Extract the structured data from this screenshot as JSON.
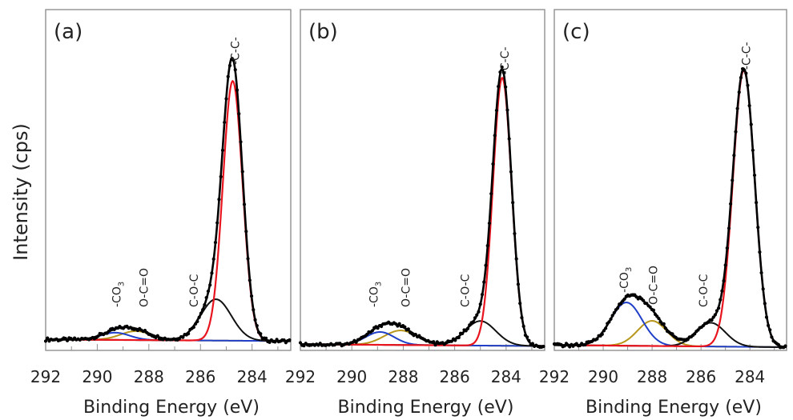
{
  "figure": {
    "ylabel": "Intensity (cps)",
    "xlabel": "Binding Energy (eV)"
  },
  "colors": {
    "data": "#000000",
    "envelope": "#000000",
    "cc": "#e8141e",
    "coc": "#111111",
    "oco": "#b8961a",
    "co3": "#1f3fc8",
    "background": "#b8961a",
    "frame": "#909090"
  },
  "chart_data": [
    {
      "type": "line",
      "panel_label": "(a)",
      "xlabel": "Binding Energy (eV)",
      "ylabel": "Intensity (cps)",
      "xlim": [
        292,
        282.5
      ],
      "x_reversed": true,
      "xticks": [
        292,
        290,
        288,
        286,
        284
      ],
      "xticklabels": [
        "292",
        "290",
        "288",
        "286",
        "284"
      ],
      "baseline": 0.022,
      "background_slope": 0.0006,
      "peaks": [
        {
          "name": "-C-C-",
          "component": "cc",
          "center": 284.75,
          "height": 0.93,
          "fwhm": 0.9
        },
        {
          "name": "C-O-C",
          "component": "coc",
          "center": 285.4,
          "height": 0.148,
          "fwhm": 1.4
        },
        {
          "name": "O-C=O",
          "component": "oco",
          "center": 288.5,
          "height": 0.032,
          "fwhm": 1.4
        },
        {
          "name": "-CO3",
          "component": "co3",
          "center": 289.3,
          "height": 0.026,
          "fwhm": 1.3
        }
      ],
      "annotations": [
        {
          "text": "-C-C-",
          "x": 284.65
        },
        {
          "text": "C-O-C",
          "x": 286.25
        },
        {
          "text": "O-C=O",
          "x": 288.2
        },
        {
          "text": "-CO",
          "sub": "3",
          "x": 289.25
        }
      ]
    },
    {
      "type": "line",
      "panel_label": "(b)",
      "xlabel": "Binding Energy (eV)",
      "ylabel": "",
      "xlim": [
        292,
        282.5
      ],
      "x_reversed": true,
      "xticks": [
        292,
        290,
        288,
        286,
        284
      ],
      "xticklabels": [
        "292",
        "290",
        "288",
        "286",
        "284"
      ],
      "baseline": 0.004,
      "background_slope": 0.0007,
      "peaks": [
        {
          "name": "-C-C-",
          "component": "cc",
          "center": 284.15,
          "height": 0.96,
          "fwhm": 0.85
        },
        {
          "name": "C-O-C",
          "component": "coc",
          "center": 285.0,
          "height": 0.088,
          "fwhm": 1.4
        },
        {
          "name": "O-C=O",
          "component": "oco",
          "center": 288.1,
          "height": 0.052,
          "fwhm": 1.5
        },
        {
          "name": "-CO3",
          "component": "co3",
          "center": 288.9,
          "height": 0.046,
          "fwhm": 1.3
        }
      ],
      "annotations": [
        {
          "text": "-C-C-",
          "x": 284.05
        },
        {
          "text": "C-O-C",
          "x": 285.6
        },
        {
          "text": "O-C=O",
          "x": 287.9
        },
        {
          "text": "-CO",
          "sub": "3",
          "x": 289.15
        }
      ]
    },
    {
      "type": "line",
      "panel_label": "(c)",
      "xlabel": "Binding Energy (eV)",
      "ylabel": "",
      "xlim": [
        292,
        282.5
      ],
      "x_reversed": true,
      "xticks": [
        292,
        290,
        288,
        286,
        284
      ],
      "xticklabels": [
        "292",
        "290",
        "288",
        "286",
        "284"
      ],
      "baseline": 0.0,
      "background_slope": 0.0008,
      "peaks": [
        {
          "name": "-C-C-",
          "component": "cc",
          "center": 284.25,
          "height": 0.99,
          "fwhm": 1.05
        },
        {
          "name": "C-O-C",
          "component": "coc",
          "center": 285.6,
          "height": 0.085,
          "fwhm": 1.4
        },
        {
          "name": "O-C=O",
          "component": "oco",
          "center": 288.0,
          "height": 0.09,
          "fwhm": 1.4
        },
        {
          "name": "-CO3",
          "component": "co3",
          "center": 289.05,
          "height": 0.155,
          "fwhm": 1.5
        }
      ],
      "annotations": [
        {
          "text": "-C-C-",
          "x": 284.15
        },
        {
          "text": "C-O-C",
          "x": 285.9
        },
        {
          "text": "O-C=O",
          "x": 287.95
        },
        {
          "text": "-CO",
          "sub": "3",
          "x": 289.15
        }
      ]
    }
  ]
}
